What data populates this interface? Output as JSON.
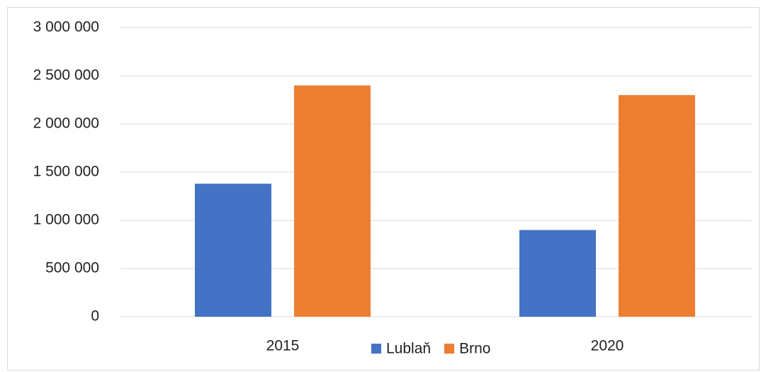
{
  "chart_data": {
    "type": "bar",
    "categories": [
      "2015",
      "2020"
    ],
    "series": [
      {
        "name": "Lublaň",
        "color": "#4472c4",
        "values": [
          1380000,
          900000
        ]
      },
      {
        "name": "Brno",
        "color": "#ed7d31",
        "values": [
          2400000,
          2300000
        ]
      }
    ],
    "ylim": [
      0,
      3000000
    ],
    "yticks": [
      0,
      {
        "value": 500000,
        "label": "500 000"
      },
      {
        "value": 1000000,
        "label": "1 000 000"
      },
      {
        "value": 1500000,
        "label": "1 500 000"
      },
      {
        "value": 2000000,
        "label": "2 000 000"
      },
      {
        "value": 2500000,
        "label": "2 500 000"
      },
      {
        "value": 3000000,
        "label": "3 000 000"
      }
    ],
    "grid": true,
    "legend": "bottom"
  }
}
